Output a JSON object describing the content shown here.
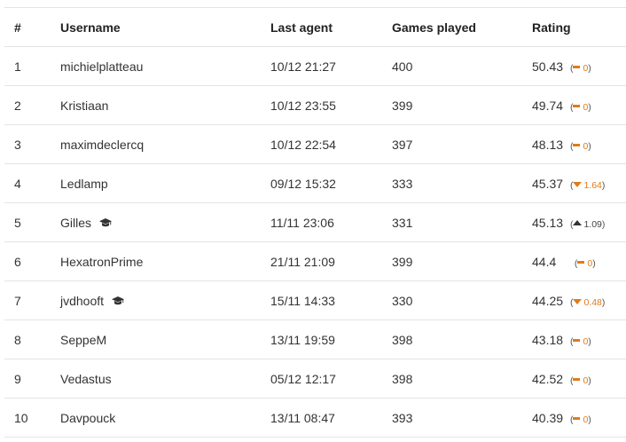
{
  "headers": {
    "rank": "#",
    "username": "Username",
    "last_agent": "Last agent",
    "games_played": "Games played",
    "rating": "Rating"
  },
  "colors": {
    "accent": "#e07b18",
    "border": "#e4e4e4",
    "text": "#333333"
  },
  "rows": [
    {
      "rank": "1",
      "username": "michielplatteau",
      "student": false,
      "last_agent": "10/12 21:27",
      "games": "400",
      "rating": "50.43",
      "trend": "flat",
      "delta": "0"
    },
    {
      "rank": "2",
      "username": "Kristiaan",
      "student": false,
      "last_agent": "10/12 23:55",
      "games": "399",
      "rating": "49.74",
      "trend": "flat",
      "delta": "0"
    },
    {
      "rank": "3",
      "username": "maximdeclercq",
      "student": false,
      "last_agent": "10/12 22:54",
      "games": "397",
      "rating": "48.13",
      "trend": "flat",
      "delta": "0"
    },
    {
      "rank": "4",
      "username": "Ledlamp",
      "student": false,
      "last_agent": "09/12 15:32",
      "games": "333",
      "rating": "45.37",
      "trend": "down",
      "delta": "1.64"
    },
    {
      "rank": "5",
      "username": "Gilles",
      "student": true,
      "last_agent": "11/11 23:06",
      "games": "331",
      "rating": "45.13",
      "trend": "up",
      "delta": "1.09"
    },
    {
      "rank": "6",
      "username": "HexatronPrime",
      "student": false,
      "last_agent": "21/11 21:09",
      "games": "399",
      "rating": "44.4",
      "trend": "flat",
      "delta": "0"
    },
    {
      "rank": "7",
      "username": "jvdhooft",
      "student": true,
      "last_agent": "15/11 14:33",
      "games": "330",
      "rating": "44.25",
      "trend": "down",
      "delta": "0.48"
    },
    {
      "rank": "8",
      "username": "SeppeM",
      "student": false,
      "last_agent": "13/11 19:59",
      "games": "398",
      "rating": "43.18",
      "trend": "flat",
      "delta": "0"
    },
    {
      "rank": "9",
      "username": "Vedastus",
      "student": false,
      "last_agent": "05/12 12:17",
      "games": "398",
      "rating": "42.52",
      "trend": "flat",
      "delta": "0"
    },
    {
      "rank": "10",
      "username": "Davpouck",
      "student": false,
      "last_agent": "13/11 08:47",
      "games": "393",
      "rating": "40.39",
      "trend": "flat",
      "delta": "0"
    }
  ]
}
